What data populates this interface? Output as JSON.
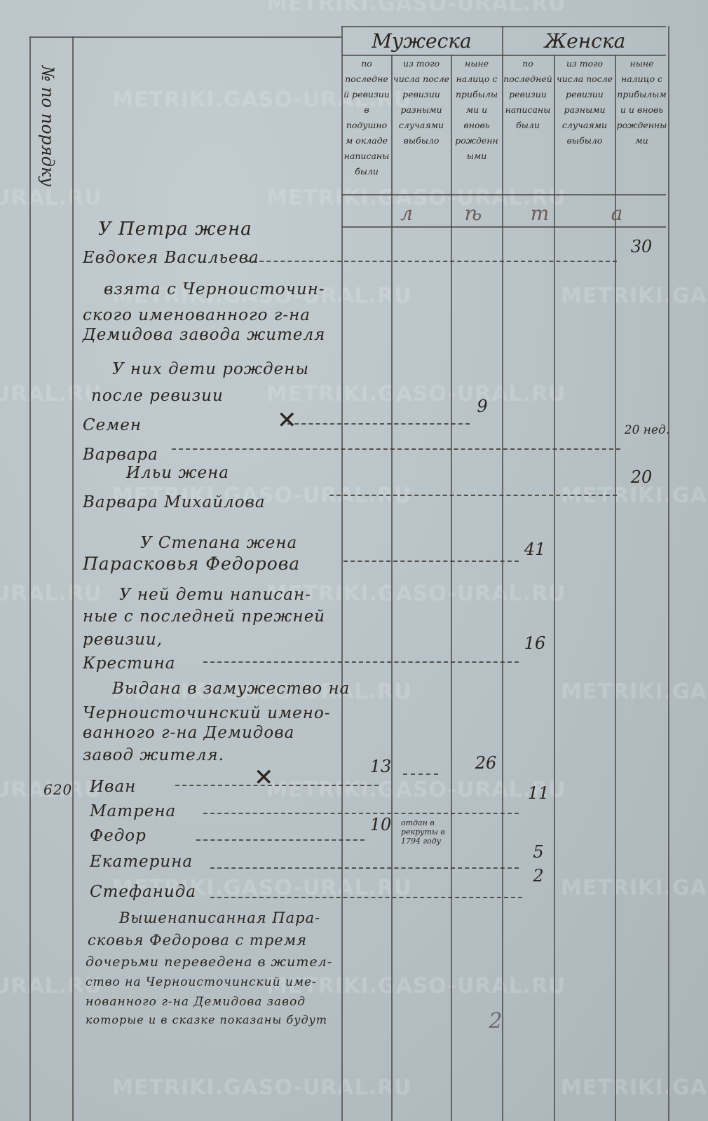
{
  "watermark": "METRIKI.GASO-URAL.RU",
  "watermark_short": "URAL.RU",
  "header": {
    "number_column": "№ по порядку",
    "male_group": "Мужеска",
    "female_group": "Женска",
    "columns": [
      "по последней ревизии в подушном окладе написаны были",
      "из того числа после ревизии разными случаями выбыло",
      "ныне налицо с прибылыми и вновь рожденными",
      "по последней ревизии написаны были",
      "из того числа после ревизии разными случаями выбыло",
      "ныне налицо с прибылыми и вновь рожденными"
    ],
    "age_letters": [
      "л",
      "ѣ",
      "т",
      "а"
    ]
  },
  "entries": [
    {
      "text": "У Петра жена"
    },
    {
      "text": "Евдокея Васильева",
      "col6": "30"
    },
    {
      "text": "взята с Черноисточин-"
    },
    {
      "text": "ского именованного г-на"
    },
    {
      "text": "Демидова завода жителя"
    },
    {
      "text": "У них дети рождены"
    },
    {
      "text": "после ревизии"
    },
    {
      "text": "Семен",
      "col3": "9"
    },
    {
      "text": "Варвара",
      "col6": "20 нед."
    },
    {
      "text": "Ильи жена"
    },
    {
      "text": "Варвара Михайлова",
      "col6": "20"
    },
    {
      "text": "У Степана жена"
    },
    {
      "text": "Парасковья Федорова",
      "col4": "41"
    },
    {
      "text": "У ней дети написан-"
    },
    {
      "text": "ные с последней прежней"
    },
    {
      "text": "ревизии,"
    },
    {
      "text": "Крестина",
      "col4": "16"
    },
    {
      "text": "Выдана в замужество на"
    },
    {
      "text": "Черноисточинский имено-"
    },
    {
      "text": "ванного г-на Демидова"
    },
    {
      "text": "завод жителя."
    },
    {
      "number": "620",
      "text": "Иван",
      "col1": "13",
      "col3": "26",
      "col4": "11"
    },
    {
      "text": "Матрена"
    },
    {
      "text": "Федор",
      "col1": "10",
      "col2_note": "отдан в рекруты в 1794 году"
    },
    {
      "text": "Екатерина",
      "col4": "5"
    },
    {
      "text": "Стефанида",
      "col4": "2"
    },
    {
      "text": "Вышенаписанная Пара-"
    },
    {
      "text": "сковья Федорова с тремя"
    },
    {
      "text": "дочерьми переведена в жител-"
    },
    {
      "text": "ство на Черноисточинский име-"
    },
    {
      "text": "нованного г-на Демидова завод"
    },
    {
      "text": "которые и в сказке показаны будут"
    }
  ],
  "page_mark": "2"
}
